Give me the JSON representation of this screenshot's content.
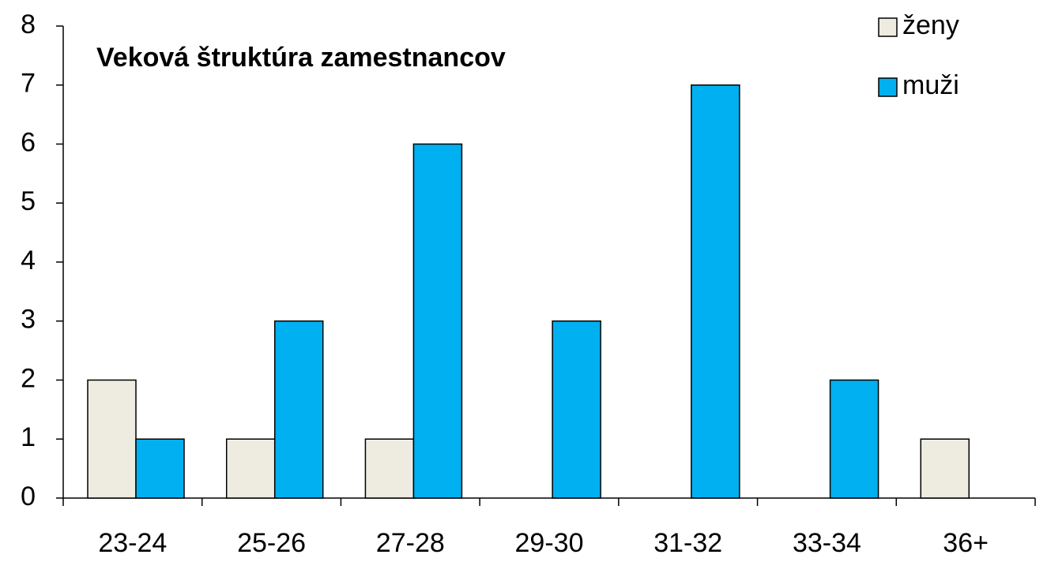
{
  "chart_data": {
    "type": "bar",
    "title": "Veková štruktúra zamestnancov",
    "categories": [
      "23-24",
      "25-26",
      "27-28",
      "29-30",
      "31-32",
      "33-34",
      "36+"
    ],
    "series": [
      {
        "name": "ženy",
        "color": "#eeece1",
        "values": [
          2,
          1,
          1,
          0,
          0,
          0,
          1
        ]
      },
      {
        "name": "muži",
        "color": "#00b0f0",
        "values": [
          1,
          3,
          6,
          3,
          7,
          2,
          0
        ]
      }
    ],
    "ylim": [
      0,
      8
    ],
    "yticks": [
      0,
      1,
      2,
      3,
      4,
      5,
      6,
      7,
      8
    ],
    "grid": false,
    "legend": "top-right"
  }
}
